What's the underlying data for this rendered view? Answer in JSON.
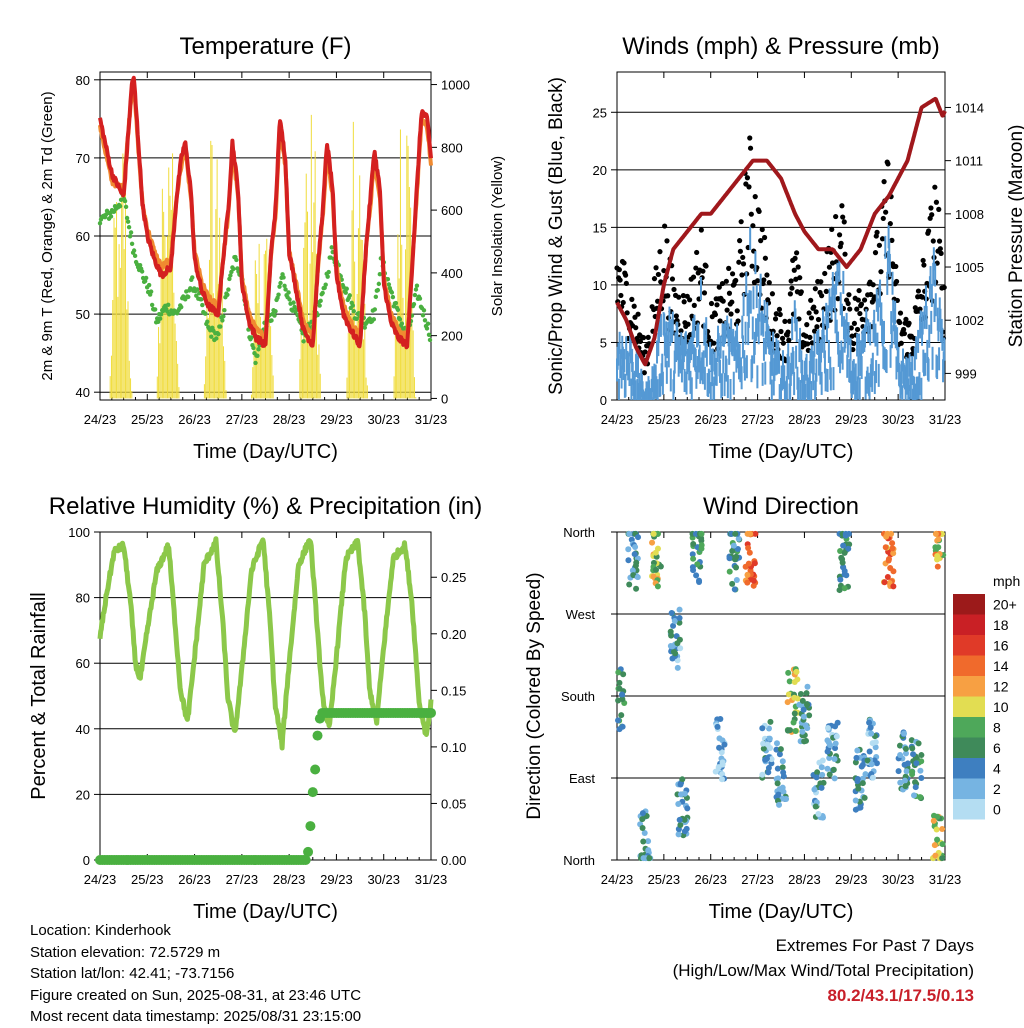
{
  "common": {
    "x_tick_labels": [
      "24/23",
      "25/23",
      "26/23",
      "27/23",
      "28/23",
      "29/23",
      "30/23",
      "31/23"
    ],
    "x_label": "Time (Day/UTC)"
  },
  "chart_data": [
    {
      "id": "temperature",
      "type": "line",
      "title": "Temperature (F)",
      "ylabel": "2m & 9m T (Red, Orange) & 2m Td (Green)",
      "ylabel_right": "Solar Insolation (Yellow)",
      "xlabel": "Time (Day/UTC)",
      "ylim": [
        39,
        81
      ],
      "ylim_right": [
        -5,
        1040
      ],
      "y_ticks": [
        40,
        50,
        60,
        70,
        80
      ],
      "y_ticks_right": [
        0,
        200,
        400,
        600,
        800,
        1000
      ],
      "grid": true,
      "series": [
        {
          "color": "#d42020",
          "t": [
            0,
            0.25,
            0.5,
            0.62,
            0.68,
            0.72,
            0.8,
            0.9,
            1.0,
            1.15,
            1.3,
            1.5,
            1.62,
            1.72,
            1.8,
            1.92,
            2.0,
            2.15,
            2.3,
            2.5,
            2.62,
            2.72,
            2.8,
            2.92,
            3.0,
            3.15,
            3.3,
            3.5,
            3.62,
            3.72,
            3.8,
            3.92,
            4.0,
            4.15,
            4.3,
            4.5,
            4.62,
            4.72,
            4.8,
            4.92,
            5.0,
            5.15,
            5.3,
            5.5,
            5.62,
            5.72,
            5.8,
            5.92,
            6.0,
            6.15,
            6.3,
            6.5,
            6.62,
            6.72,
            6.8,
            6.92,
            7.0
          ],
          "values": [
            75,
            68,
            65,
            75,
            80,
            80,
            73,
            64,
            60,
            57,
            55,
            56,
            65,
            70,
            72,
            66,
            57,
            53,
            51,
            50,
            58,
            64,
            72,
            66,
            54,
            49,
            47,
            46,
            58,
            64,
            75,
            70,
            58,
            53,
            48,
            46,
            57,
            64,
            72,
            66,
            55,
            50,
            48,
            46,
            58,
            65,
            71,
            66,
            54,
            49,
            47,
            46,
            58,
            68,
            76,
            75,
            70
          ]
        },
        {
          "color": "#f08a30",
          "t": [
            0,
            0.25,
            0.5,
            0.62,
            0.68,
            0.72,
            0.8,
            0.9,
            1.0,
            1.15,
            1.3,
            1.5,
            1.62,
            1.72,
            1.8,
            1.92,
            2.0,
            2.15,
            2.3,
            2.5,
            2.62,
            2.72,
            2.8,
            2.92,
            3.0,
            3.15,
            3.3,
            3.5,
            3.62,
            3.72,
            3.8,
            3.92,
            4.0,
            4.15,
            4.3,
            4.5,
            4.62,
            4.72,
            4.8,
            4.92,
            5.0,
            5.15,
            5.3,
            5.5,
            5.62,
            5.72,
            5.8,
            5.92,
            6.0,
            6.15,
            6.3,
            6.5,
            6.62,
            6.72,
            6.8,
            6.92,
            7.0
          ],
          "values": [
            74,
            67,
            66,
            75,
            79,
            79,
            72,
            64,
            61,
            58,
            56,
            57,
            65,
            69,
            71,
            65,
            58,
            54,
            52,
            51,
            58,
            63,
            71,
            65,
            55,
            50,
            48,
            47,
            58,
            63,
            74,
            69,
            58,
            54,
            49,
            47,
            57,
            63,
            71,
            65,
            56,
            51,
            49,
            47,
            58,
            64,
            70,
            65,
            55,
            50,
            48,
            47,
            58,
            67,
            75,
            74,
            69
          ]
        },
        {
          "color": "#4ab040",
          "t": [
            0,
            0.25,
            0.5,
            0.62,
            0.72,
            0.9,
            1.05,
            1.2,
            1.4,
            1.6,
            1.8,
            1.95,
            2.1,
            2.3,
            2.5,
            2.7,
            2.85,
            3.0,
            3.15,
            3.3,
            3.5,
            3.7,
            3.85,
            4.0,
            4.15,
            4.3,
            4.5,
            4.7,
            4.9,
            5.05,
            5.2,
            5.4,
            5.6,
            5.8,
            5.95,
            6.1,
            6.3,
            6.5,
            6.7,
            6.85,
            7.0
          ],
          "values": [
            62,
            63,
            65,
            61,
            58,
            55,
            53,
            49,
            51,
            50,
            52,
            54,
            52,
            48,
            47,
            53,
            57,
            55,
            48,
            44,
            49,
            50,
            55,
            52,
            50,
            47,
            49,
            52,
            58,
            56,
            53,
            50,
            49,
            50,
            57,
            54,
            50,
            47,
            53,
            50,
            47
          ]
        },
        {
          "color": "#f0dc3c",
          "axis": "right",
          "t": [
            0,
            0.2,
            0.3,
            0.36,
            0.42,
            0.48,
            0.55,
            0.62,
            0.68,
            0.74,
            1.0,
            1.2,
            1.3,
            1.36,
            1.42,
            1.48,
            1.55,
            1.62,
            1.68,
            1.74,
            2.0,
            2.2,
            2.3,
            2.36,
            2.42,
            2.48,
            2.55,
            2.62,
            2.68,
            2.74,
            3.0,
            3.2,
            3.3,
            3.36,
            3.42,
            3.48,
            3.55,
            3.62,
            3.68,
            3.74,
            4.0,
            4.2,
            4.3,
            4.36,
            4.42,
            4.48,
            4.55,
            4.62,
            4.68,
            4.74,
            5.0,
            5.2,
            5.3,
            5.36,
            5.42,
            5.48,
            5.55,
            5.62,
            5.68,
            5.74,
            6.0,
            6.2,
            6.3,
            6.36,
            6.42,
            6.48,
            6.55,
            6.62,
            6.68,
            6.74,
            7.0
          ],
          "values": [
            0,
            0,
            500,
            700,
            350,
            800,
            600,
            200,
            0,
            0,
            0,
            0,
            550,
            950,
            400,
            880,
            700,
            250,
            0,
            0,
            0,
            0,
            500,
            850,
            300,
            820,
            600,
            180,
            0,
            0,
            0,
            0,
            450,
            880,
            200,
            800,
            640,
            220,
            0,
            0,
            0,
            0,
            520,
            900,
            350,
            870,
            700,
            230,
            0,
            0,
            0,
            0,
            400,
            750,
            260,
            680,
            520,
            160,
            0,
            0,
            0,
            0,
            480,
            860,
            320,
            900,
            620,
            210,
            0,
            0,
            0
          ]
        }
      ]
    },
    {
      "id": "winds",
      "type": "scatter",
      "title": "Winds (mph) & Pressure (mb)",
      "ylabel": "Sonic/Prop Wind & Gust (Blue, Black)",
      "ylabel_right": "Station Pressure (Maroon)",
      "xlabel": "Time (Day/UTC)",
      "ylim": [
        0,
        28.5
      ],
      "ylim_right": [
        997.5,
        1016
      ],
      "y_ticks": [
        0,
        5,
        10,
        15,
        20,
        25
      ],
      "y_ticks_right": [
        999,
        1002,
        1005,
        1008,
        1011,
        1014
      ],
      "grid": true,
      "wind_color": "#5599d4",
      "gust_color": "#000000",
      "wind_sustained": {
        "t": [
          0,
          0.3,
          0.6,
          0.8,
          1.0,
          1.2,
          1.5,
          1.8,
          2.0,
          2.3,
          2.6,
          2.8,
          3.0,
          3.3,
          3.6,
          3.8,
          4.0,
          4.3,
          4.6,
          4.8,
          5.0,
          5.3,
          5.6,
          5.8,
          6.0,
          6.3,
          6.6,
          6.8,
          7.0
        ],
        "values": [
          6,
          5,
          1,
          3,
          8,
          6,
          5,
          9,
          4,
          6,
          5,
          12,
          10,
          5,
          3,
          7,
          3,
          5,
          9,
          10,
          4,
          6,
          8,
          13,
          4,
          3,
          8,
          11,
          4
        ]
      },
      "gusts": {
        "t": [
          0,
          0.3,
          0.6,
          0.8,
          1.0,
          1.2,
          1.5,
          1.8,
          2.0,
          2.3,
          2.6,
          2.8,
          3.0,
          3.3,
          3.6,
          3.8,
          4.0,
          4.3,
          4.6,
          4.8,
          5.0,
          5.3,
          5.6,
          5.8,
          6.0,
          6.3,
          6.6,
          6.8,
          7.0
        ],
        "values": [
          12,
          9,
          4,
          9,
          14,
          9,
          8,
          13,
          7,
          9,
          11,
          20,
          16,
          8,
          6,
          12,
          6,
          9,
          13,
          15,
          7,
          10,
          13,
          19,
          7,
          6,
          12,
          17,
          8
        ]
      },
      "pressure": {
        "color": "#a0181c",
        "t": [
          0,
          0.2,
          0.4,
          0.6,
          0.8,
          1.0,
          1.2,
          1.5,
          1.8,
          2.0,
          2.3,
          2.6,
          2.9,
          3.2,
          3.5,
          3.8,
          4.0,
          4.3,
          4.6,
          4.9,
          5.2,
          5.5,
          5.8,
          6.0,
          6.2,
          6.5,
          6.8,
          6.95,
          7.0
        ],
        "values": [
          1003,
          1002,
          1000.5,
          999.5,
          1001,
          1004,
          1006,
          1007,
          1008,
          1008,
          1009,
          1010,
          1011,
          1011,
          1010,
          1008,
          1007,
          1006,
          1006,
          1005,
          1006,
          1008,
          1009,
          1010,
          1011,
          1014,
          1014.5,
          1013.5,
          1013.8
        ]
      }
    },
    {
      "id": "humidity",
      "type": "line",
      "title": "Relative Humidity (%) & Precipitation (in)",
      "ylabel": "Percent & Total Rainfall",
      "xlabel": "Time (Day/UTC)",
      "ylim": [
        0,
        100
      ],
      "ylim_right": [
        0,
        0.29
      ],
      "y_ticks": [
        0,
        20,
        40,
        60,
        80,
        100
      ],
      "y_ticks_right": [
        "0.00",
        "0.05",
        "0.10",
        "0.15",
        "0.20",
        "0.25"
      ],
      "grid": true,
      "series": [
        {
          "color": "#8cc84a",
          "t": [
            0,
            0.15,
            0.3,
            0.5,
            0.65,
            0.75,
            0.85,
            1.0,
            1.2,
            1.45,
            1.6,
            1.7,
            1.85,
            2.0,
            2.2,
            2.45,
            2.6,
            2.7,
            2.85,
            3.0,
            3.2,
            3.45,
            3.6,
            3.7,
            3.85,
            4.0,
            4.2,
            4.45,
            4.6,
            4.7,
            4.85,
            5.0,
            5.2,
            5.45,
            5.6,
            5.7,
            5.85,
            6.0,
            6.2,
            6.45,
            6.6,
            6.75,
            6.9,
            7.0
          ],
          "values": [
            68,
            82,
            94,
            96,
            78,
            60,
            55,
            70,
            88,
            96,
            70,
            52,
            42,
            62,
            90,
            97,
            72,
            50,
            38,
            58,
            88,
            98,
            72,
            48,
            35,
            60,
            90,
            98,
            70,
            50,
            40,
            62,
            92,
            97,
            75,
            52,
            42,
            65,
            92,
            96,
            78,
            48,
            38,
            48
          ]
        },
        {
          "color": "#4ab040",
          "axis": "right",
          "t": [
            0,
            4.35,
            4.42,
            4.45,
            4.5,
            4.55,
            4.58,
            4.62,
            4.65,
            4.7,
            7.0
          ],
          "values": [
            0,
            0,
            0.01,
            0.03,
            0.06,
            0.08,
            0.1,
            0.12,
            0.125,
            0.13,
            0.13
          ]
        }
      ]
    },
    {
      "id": "wind_direction",
      "type": "scatter",
      "title": "Wind Direction",
      "ylabel": "Direction (Colored By Speed)",
      "xlabel": "Time (Day/UTC)",
      "y_categories": [
        "North",
        "East",
        "South",
        "West",
        "North"
      ],
      "legend_title": "mph",
      "legend_labels": [
        "20+",
        "18",
        "16",
        "14",
        "12",
        "10",
        "8",
        "6",
        "4",
        "2",
        "0"
      ],
      "legend_colors": [
        "#9c1a1a",
        "#c92025",
        "#e03a28",
        "#f06a2c",
        "#f7a043",
        "#e2dd52",
        "#4ea85a",
        "#3f8a5a",
        "#3e7fc0",
        "#76b4e2",
        "#b4ddf2"
      ],
      "legend_position": "right",
      "clusters": [
        {
          "t": 0.05,
          "dir": 175,
          "speed": 6
        },
        {
          "t": 0.35,
          "dir": 330,
          "speed": 4
        },
        {
          "t": 0.6,
          "dir": 20,
          "speed": 4
        },
        {
          "t": 0.85,
          "dir": 335,
          "speed": 9
        },
        {
          "t": 1.25,
          "dir": 240,
          "speed": 3
        },
        {
          "t": 1.4,
          "dir": 60,
          "speed": 4
        },
        {
          "t": 1.7,
          "dir": 340,
          "speed": 6
        },
        {
          "t": 2.2,
          "dir": 120,
          "speed": 2
        },
        {
          "t": 2.5,
          "dir": 330,
          "speed": 5
        },
        {
          "t": 2.85,
          "dir": 335,
          "speed": 14
        },
        {
          "t": 3.2,
          "dir": 120,
          "speed": 3
        },
        {
          "t": 3.5,
          "dir": 95,
          "speed": 4
        },
        {
          "t": 3.75,
          "dir": 175,
          "speed": 9
        },
        {
          "t": 4.0,
          "dir": 160,
          "speed": 4
        },
        {
          "t": 4.3,
          "dir": 80,
          "speed": 3
        },
        {
          "t": 4.6,
          "dir": 120,
          "speed": 3
        },
        {
          "t": 4.85,
          "dir": 330,
          "speed": 6
        },
        {
          "t": 5.2,
          "dir": 90,
          "speed": 4
        },
        {
          "t": 5.45,
          "dir": 120,
          "speed": 3
        },
        {
          "t": 5.8,
          "dir": 335,
          "speed": 13
        },
        {
          "t": 6.1,
          "dir": 110,
          "speed": 4
        },
        {
          "t": 6.4,
          "dir": 100,
          "speed": 5
        },
        {
          "t": 6.9,
          "dir": 350,
          "speed": 11
        },
        {
          "t": 6.85,
          "dir": 15,
          "speed": 9
        }
      ]
    }
  ],
  "station_info": {
    "location": "Location: Kinderhook",
    "elevation": "Station elevation: 72.5729 m",
    "latlon": "Station lat/lon: 42.41; -73.7156",
    "created": "Figure created on Sun, 2025-08-31, at 23:46 UTC",
    "recent": "Most recent data timestamp: 2025/08/31 23:15:00"
  },
  "extremes": {
    "title": "Extremes For Past 7 Days",
    "subtitle": "(High/Low/Max Wind/Total Precipitation)",
    "values": "80.2/43.1/17.5/0.13",
    "values_color": "#c8202a"
  }
}
